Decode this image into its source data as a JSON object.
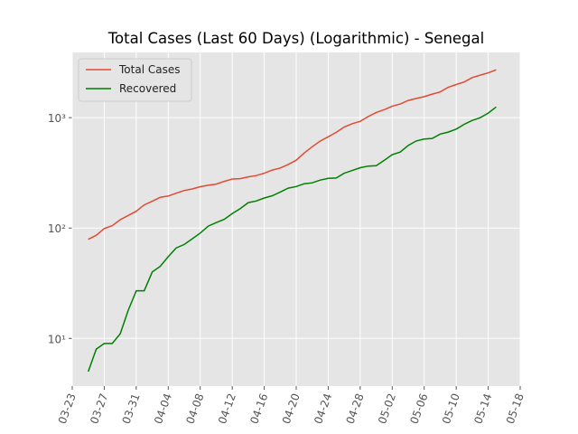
{
  "chart_data": {
    "type": "line",
    "title": "Total Cases (Last 60 Days) (Logarithmic) - Senegal",
    "x": [
      "03-25",
      "03-26",
      "03-27",
      "03-28",
      "03-29",
      "03-30",
      "03-31",
      "04-01",
      "04-02",
      "04-03",
      "04-04",
      "04-05",
      "04-06",
      "04-07",
      "04-08",
      "04-09",
      "04-10",
      "04-11",
      "04-12",
      "04-13",
      "04-14",
      "04-15",
      "04-16",
      "04-17",
      "04-18",
      "04-19",
      "04-20",
      "04-21",
      "04-22",
      "04-23",
      "04-24",
      "04-25",
      "04-26",
      "04-27",
      "04-28",
      "04-29",
      "04-30",
      "05-01",
      "05-02",
      "05-03",
      "05-04",
      "05-05",
      "05-06",
      "05-07",
      "05-08",
      "05-09",
      "05-10",
      "05-11",
      "05-12",
      "05-13",
      "05-14",
      "05-15"
    ],
    "series": [
      {
        "name": "Total Cases",
        "color": "#E24A33",
        "values": [
          79,
          86,
          99,
          105,
          119,
          130,
          142,
          162,
          175,
          190,
          195,
          207,
          219,
          226,
          237,
          244,
          250,
          265,
          278,
          280,
          291,
          299,
          314,
          335,
          350,
          377,
          412,
          479,
          545,
          614,
          671,
          736,
          823,
          882,
          927,
          1024,
          1115,
          1182,
          1271,
          1329,
          1433,
          1492,
          1551,
          1634,
          1709,
          1886,
          1995,
          2105,
          2310,
          2429,
          2544,
          2714
        ]
      },
      {
        "name": "Recovered",
        "color": "#008000",
        "values": [
          5,
          8,
          9,
          9,
          11,
          18,
          27,
          27,
          40,
          45,
          55,
          66,
          71,
          80,
          90,
          104,
          112,
          120,
          135,
          150,
          170,
          176,
          187,
          196,
          212,
          230,
          238,
          252,
          257,
          272,
          282,
          284,
          314,
          332,
          352,
          364,
          367,
          410,
          463,
          488,
          560,
          615,
          640,
          649,
          710,
          740,
          788,
          870,
          945,
          1000,
          1100,
          1250
        ]
      }
    ],
    "xlim": [
      "03-23",
      "05-18"
    ],
    "xticks": [
      "03-23",
      "03-27",
      "03-31",
      "04-04",
      "04-08",
      "04-12",
      "04-16",
      "04-20",
      "04-24",
      "04-28",
      "05-02",
      "05-06",
      "05-10",
      "05-14",
      "05-18"
    ],
    "ylim": [
      3.7,
      3900
    ],
    "log_y": true,
    "yticks": [
      {
        "value": 10,
        "label": "10¹"
      },
      {
        "value": 100,
        "label": "10²"
      },
      {
        "value": 1000,
        "label": "10³"
      }
    ],
    "grid": true,
    "legend": "upper left"
  }
}
